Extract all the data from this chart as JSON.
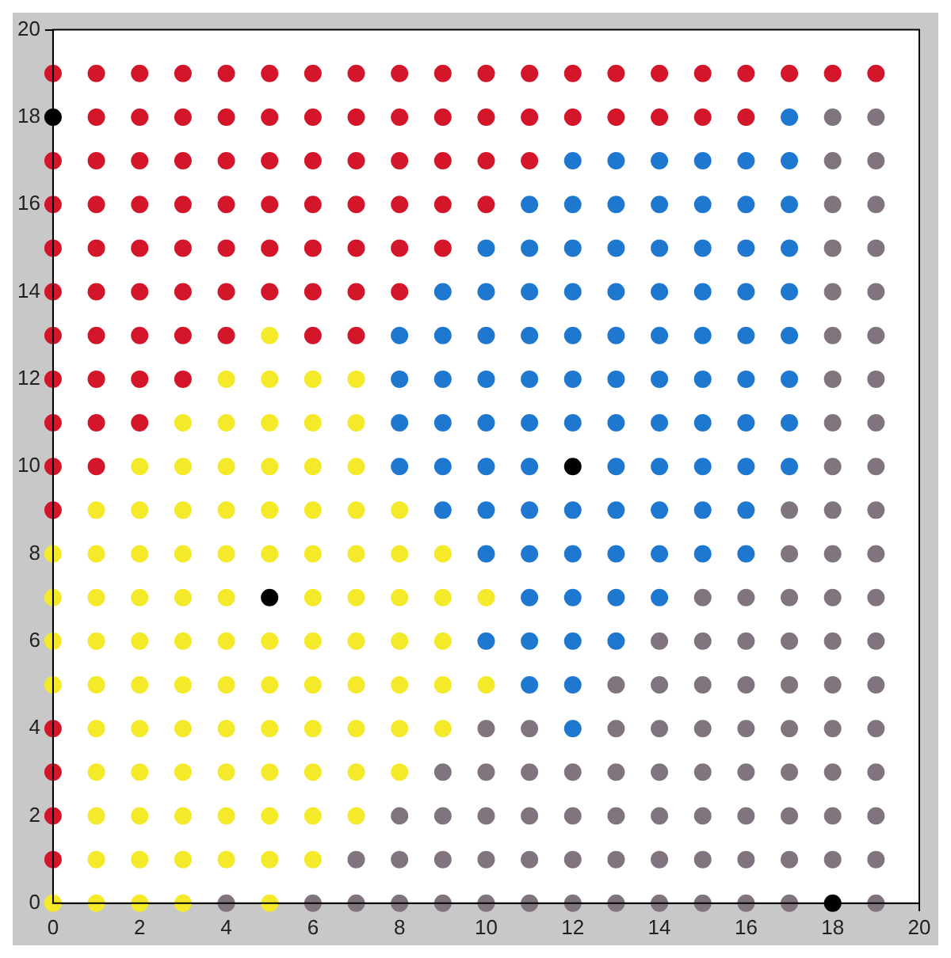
{
  "chart_data": {
    "type": "scatter",
    "xlim": [
      0,
      20
    ],
    "ylim": [
      0,
      20
    ],
    "xticks": [
      0,
      2,
      4,
      6,
      8,
      10,
      12,
      14,
      16,
      18,
      20
    ],
    "yticks": [
      0,
      2,
      4,
      6,
      8,
      10,
      12,
      14,
      16,
      18,
      20
    ],
    "grid": false,
    "legend": false,
    "marker": "circle",
    "series": [
      {
        "color": "#d4162a",
        "x": [
          0,
          1,
          2,
          3,
          4,
          5,
          6,
          7,
          8,
          9,
          10,
          11,
          12,
          13,
          14,
          15,
          16,
          17,
          18,
          19,
          1,
          2,
          3,
          4,
          5,
          6,
          7,
          8,
          9,
          10,
          11,
          12,
          13,
          14,
          15,
          16,
          0,
          1,
          2,
          3,
          4,
          5,
          6,
          7,
          8,
          9,
          10,
          11,
          0,
          1,
          2,
          3,
          4,
          5,
          6,
          7,
          8,
          9,
          10,
          0,
          1,
          2,
          3,
          4,
          5,
          6,
          7,
          8,
          9,
          0,
          1,
          2,
          3,
          4,
          5,
          6,
          7,
          8,
          0,
          1,
          2,
          3,
          4,
          6,
          7,
          0,
          1,
          2,
          3,
          0,
          1,
          2,
          0,
          1,
          0,
          0,
          0,
          0,
          0
        ],
        "values": [
          19,
          19,
          19,
          19,
          19,
          19,
          19,
          19,
          19,
          19,
          19,
          19,
          19,
          19,
          19,
          19,
          19,
          19,
          19,
          19,
          18,
          18,
          18,
          18,
          18,
          18,
          18,
          18,
          18,
          18,
          18,
          18,
          18,
          18,
          18,
          18,
          17,
          17,
          17,
          17,
          17,
          17,
          17,
          17,
          17,
          17,
          17,
          17,
          16,
          16,
          16,
          16,
          16,
          16,
          16,
          16,
          16,
          16,
          16,
          15,
          15,
          15,
          15,
          15,
          15,
          15,
          15,
          15,
          15,
          14,
          14,
          14,
          14,
          14,
          14,
          14,
          14,
          14,
          13,
          13,
          13,
          13,
          13,
          13,
          13,
          12,
          12,
          12,
          12,
          11,
          11,
          11,
          10,
          10,
          9,
          4,
          3,
          2,
          1
        ]
      },
      {
        "color": "#1f78d0",
        "x": [
          17,
          12,
          13,
          14,
          15,
          16,
          17,
          11,
          12,
          13,
          14,
          15,
          16,
          17,
          10,
          11,
          12,
          13,
          14,
          15,
          16,
          17,
          9,
          10,
          11,
          12,
          13,
          14,
          15,
          16,
          17,
          8,
          9,
          10,
          11,
          12,
          13,
          14,
          15,
          16,
          17,
          8,
          9,
          10,
          11,
          12,
          13,
          14,
          15,
          16,
          17,
          8,
          9,
          10,
          11,
          12,
          13,
          14,
          15,
          16,
          17,
          8,
          9,
          10,
          11,
          13,
          14,
          15,
          16,
          17,
          9,
          10,
          11,
          12,
          13,
          14,
          15,
          16,
          10,
          11,
          12,
          13,
          14,
          15,
          16,
          11,
          12,
          13,
          14,
          10,
          11,
          12,
          13,
          11,
          12,
          12
        ],
        "values": [
          18,
          17,
          17,
          17,
          17,
          17,
          17,
          16,
          16,
          16,
          16,
          16,
          16,
          16,
          15,
          15,
          15,
          15,
          15,
          15,
          15,
          15,
          14,
          14,
          14,
          14,
          14,
          14,
          14,
          14,
          14,
          13,
          13,
          13,
          13,
          13,
          13,
          13,
          13,
          13,
          13,
          12,
          12,
          12,
          12,
          12,
          12,
          12,
          12,
          12,
          12,
          11,
          11,
          11,
          11,
          11,
          11,
          11,
          11,
          11,
          11,
          10,
          10,
          10,
          10,
          10,
          10,
          10,
          10,
          10,
          9,
          9,
          9,
          9,
          9,
          9,
          9,
          9,
          8,
          8,
          8,
          8,
          8,
          8,
          8,
          7,
          7,
          7,
          7,
          6,
          6,
          6,
          6,
          5,
          5,
          4
        ]
      },
      {
        "color": "#f4ea2a",
        "x": [
          5,
          4,
          5,
          6,
          7,
          3,
          4,
          5,
          6,
          7,
          2,
          3,
          4,
          5,
          6,
          7,
          1,
          2,
          3,
          4,
          5,
          6,
          7,
          8,
          0,
          1,
          2,
          3,
          4,
          5,
          6,
          7,
          8,
          9,
          0,
          1,
          2,
          3,
          4,
          6,
          7,
          8,
          9,
          10,
          0,
          1,
          2,
          3,
          4,
          5,
          6,
          7,
          8,
          9,
          0,
          1,
          2,
          3,
          4,
          5,
          6,
          7,
          8,
          9,
          10,
          1,
          2,
          3,
          4,
          5,
          6,
          7,
          8,
          9,
          1,
          2,
          3,
          4,
          5,
          6,
          7,
          8,
          1,
          2,
          3,
          4,
          5,
          6,
          7,
          1,
          2,
          3,
          4,
          5,
          6,
          0,
          1,
          2,
          3,
          5
        ],
        "values": [
          13,
          12,
          12,
          12,
          12,
          11,
          11,
          11,
          11,
          11,
          10,
          10,
          10,
          10,
          10,
          10,
          9,
          9,
          9,
          9,
          9,
          9,
          9,
          9,
          8,
          8,
          8,
          8,
          8,
          8,
          8,
          8,
          8,
          8,
          7,
          7,
          7,
          7,
          7,
          7,
          7,
          7,
          7,
          7,
          6,
          6,
          6,
          6,
          6,
          6,
          6,
          6,
          6,
          6,
          5,
          5,
          5,
          5,
          5,
          5,
          5,
          5,
          5,
          5,
          5,
          4,
          4,
          4,
          4,
          4,
          4,
          4,
          4,
          4,
          3,
          3,
          3,
          3,
          3,
          3,
          3,
          3,
          2,
          2,
          2,
          2,
          2,
          2,
          2,
          1,
          1,
          1,
          1,
          1,
          1,
          0,
          0,
          0,
          0,
          0
        ]
      },
      {
        "color": "#80747f",
        "x": [
          18,
          19,
          18,
          19,
          18,
          19,
          18,
          19,
          18,
          19,
          18,
          19,
          18,
          19,
          18,
          19,
          18,
          19,
          17,
          18,
          19,
          17,
          18,
          19,
          15,
          16,
          17,
          18,
          19,
          14,
          15,
          16,
          17,
          18,
          19,
          13,
          14,
          15,
          16,
          17,
          18,
          19,
          10,
          11,
          13,
          14,
          15,
          16,
          17,
          18,
          19,
          9,
          10,
          11,
          12,
          13,
          14,
          15,
          16,
          17,
          18,
          19,
          8,
          9,
          10,
          11,
          12,
          13,
          14,
          15,
          16,
          17,
          18,
          19,
          7,
          8,
          9,
          10,
          11,
          12,
          13,
          14,
          15,
          16,
          17,
          18,
          19,
          4,
          6,
          7,
          8,
          9,
          10,
          11,
          12,
          13,
          14,
          15,
          16,
          17,
          19
        ],
        "values": [
          18,
          18,
          17,
          17,
          16,
          16,
          15,
          15,
          14,
          14,
          13,
          13,
          12,
          12,
          11,
          11,
          10,
          10,
          9,
          9,
          9,
          8,
          8,
          8,
          7,
          7,
          7,
          7,
          7,
          6,
          6,
          6,
          6,
          6,
          6,
          5,
          5,
          5,
          5,
          5,
          5,
          5,
          4,
          4,
          4,
          4,
          4,
          4,
          4,
          4,
          4,
          3,
          3,
          3,
          3,
          3,
          3,
          3,
          3,
          3,
          3,
          3,
          2,
          2,
          2,
          2,
          2,
          2,
          2,
          2,
          2,
          2,
          2,
          2,
          1,
          1,
          1,
          1,
          1,
          1,
          1,
          1,
          1,
          1,
          1,
          1,
          1,
          0,
          0,
          0,
          0,
          0,
          0,
          0,
          0,
          0,
          0,
          0,
          0,
          0,
          0
        ]
      },
      {
        "color": "#000000",
        "x": [
          0,
          12,
          5,
          18
        ],
        "values": [
          18,
          10,
          7,
          0
        ]
      }
    ]
  }
}
